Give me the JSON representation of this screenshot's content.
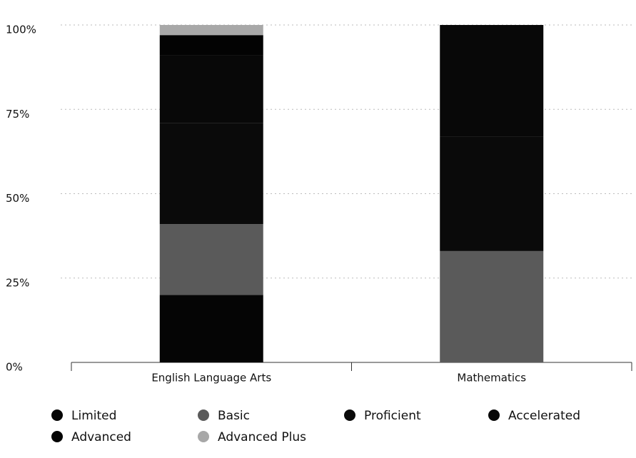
{
  "chart_data": {
    "type": "stacked_bar",
    "categories": [
      "English Language Arts",
      "Mathematics"
    ],
    "series": [
      {
        "name": "Limited",
        "color": "#050505",
        "values": [
          20,
          0
        ]
      },
      {
        "name": "Basic",
        "color": "#5a5a5a",
        "values": [
          21,
          33
        ]
      },
      {
        "name": "Proficient",
        "color": "#0a0a0a",
        "values": [
          30,
          34
        ]
      },
      {
        "name": "Accelerated",
        "color": "#080808",
        "values": [
          20,
          33
        ]
      },
      {
        "name": "Advanced",
        "color": "#030303",
        "values": [
          6,
          0
        ]
      },
      {
        "name": "Advanced Plus",
        "color": "#a8a8a8",
        "values": [
          3,
          0
        ]
      }
    ],
    "ylim": [
      0,
      100
    ],
    "yticks": [
      {
        "value": 0,
        "label": "0%"
      },
      {
        "value": 25,
        "label": "25%"
      },
      {
        "value": 50,
        "label": "50%"
      },
      {
        "value": 75,
        "label": "75%"
      },
      {
        "value": 100,
        "label": "100%"
      }
    ],
    "grid": true,
    "legend": "bottom"
  }
}
